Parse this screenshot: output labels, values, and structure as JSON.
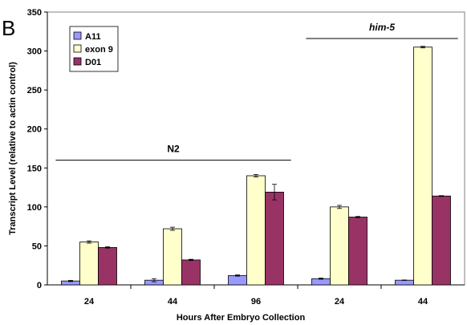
{
  "panel_label": "B",
  "chart_data": {
    "type": "bar",
    "xlabel": "Hours After Embryo Collection",
    "ylabel": "Transcript Level (relative to actin control)",
    "ylim": [
      0,
      350
    ],
    "yticks": [
      0,
      50,
      100,
      150,
      200,
      250,
      300,
      350
    ],
    "categories": [
      "24",
      "44",
      "96",
      "24",
      "44"
    ],
    "series": [
      {
        "name": "A11",
        "color": "#9999ff",
        "values": [
          5,
          6,
          12,
          8,
          6
        ],
        "errors": [
          0.8,
          2.0,
          0.8,
          0.8,
          0.3
        ]
      },
      {
        "name": "exon 9",
        "color": "#ffffcc",
        "values": [
          55,
          72,
          140,
          100,
          305
        ],
        "errors": [
          1.5,
          2.0,
          1.5,
          2.0,
          1.0
        ]
      },
      {
        "name": "D01",
        "color": "#993366",
        "values": [
          48,
          32,
          119,
          87,
          114
        ],
        "errors": [
          0.8,
          0.8,
          10.0,
          0.8,
          0.5
        ]
      }
    ],
    "legend_position": "top-left",
    "grid": false,
    "annotations": [
      {
        "text": "N2",
        "style": "normal",
        "spans": [
          0,
          2
        ],
        "level": 160
      },
      {
        "text": "him-5",
        "style": "italic",
        "spans": [
          3,
          4
        ],
        "level": 316
      }
    ]
  }
}
